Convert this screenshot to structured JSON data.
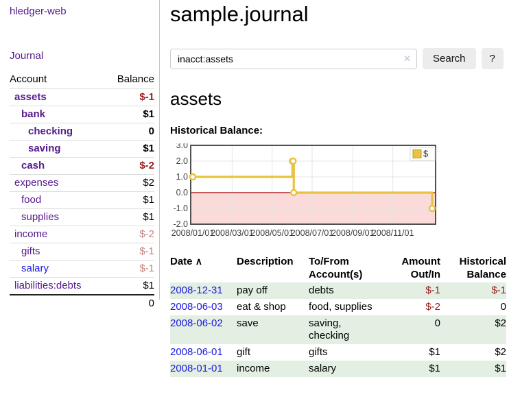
{
  "colors": {
    "link_visited_purple": "#551a8b",
    "link_blue": "#1b1ae0",
    "negative_red": "#9b1c1c",
    "negative_faded_red": "#c4807f",
    "row_green": "#e3efe3",
    "chart_gold": "#e9c23f",
    "chart_negative_fill": "#fbdada",
    "chart_zero_line": "#a40000"
  },
  "sidebar": {
    "app_title": "hledger-web",
    "nav": {
      "journal_label": "Journal"
    },
    "accounts_table": {
      "headers": {
        "account": "Account",
        "balance": "Balance"
      },
      "rows": [
        {
          "name": "assets",
          "balance": "$-1"
        },
        {
          "name": "bank",
          "balance": "$1"
        },
        {
          "name": "checking",
          "balance": "0"
        },
        {
          "name": "saving",
          "balance": "$1"
        },
        {
          "name": "cash",
          "balance": "$-2"
        },
        {
          "name": "expenses",
          "balance": "$2"
        },
        {
          "name": "food",
          "balance": "$1"
        },
        {
          "name": "supplies",
          "balance": "$1"
        },
        {
          "name": "income",
          "balance": "$-2"
        },
        {
          "name": "gifts",
          "balance": "$-1"
        },
        {
          "name": "salary",
          "balance": "$-1"
        },
        {
          "name": "liabilities:debts",
          "balance": "$1"
        }
      ],
      "total": "0"
    }
  },
  "main": {
    "page_title": "sample.journal",
    "search": {
      "value": "inacct:assets",
      "clear_icon": "✕",
      "search_button_label": "Search",
      "help_button_label": "?"
    },
    "section_title": "assets",
    "chart_label": "Historical Balance:"
  },
  "chart_data": {
    "type": "line",
    "style": "step",
    "title": "Historical Balance:",
    "series": [
      {
        "name": "$",
        "points": [
          [
            "2008-01-01",
            1
          ],
          [
            "2008-06-01",
            2
          ],
          [
            "2008-06-02",
            2
          ],
          [
            "2008-06-03",
            0
          ],
          [
            "2008-12-31",
            -1
          ]
        ]
      }
    ],
    "ylim": [
      -2,
      3
    ],
    "ytick_labels": [
      "3.0",
      "2.0",
      "1.0",
      "0.0",
      "-1.0",
      "-2.0"
    ],
    "ytick_values": [
      3,
      2,
      1,
      0,
      -1,
      -2
    ],
    "xtick_labels": [
      "2008/01/01",
      "2008/03/01",
      "2008/05/01",
      "2008/07/01",
      "2008/09/01",
      "2008/11/01"
    ],
    "xtick_dates": [
      "2008-01-01",
      "2008-03-01",
      "2008-05-01",
      "2008-07-01",
      "2008-09-01",
      "2008-11-01"
    ],
    "grid": true,
    "negative_region_shaded": true,
    "legend": {
      "position": "top-right",
      "entries": [
        {
          "label": "$",
          "color": "#e9c23f"
        }
      ]
    }
  },
  "register_table": {
    "sort_caret": "∧",
    "headers": [
      "Date",
      "Description",
      "To/From Account(s)",
      "Amount Out/In",
      "Historical Balance"
    ],
    "rows": [
      {
        "date": "2008-12-31",
        "description": "pay off",
        "accounts": "debts",
        "amount": "$-1",
        "balance": "$-1"
      },
      {
        "date": "2008-06-03",
        "description": "eat & shop",
        "accounts": "food, supplies",
        "amount": "$-2",
        "balance": "0"
      },
      {
        "date": "2008-06-02",
        "description": "save",
        "accounts": "saving, checking",
        "amount": "0",
        "balance": "$2"
      },
      {
        "date": "2008-06-01",
        "description": "gift",
        "accounts": "gifts",
        "amount": "$1",
        "balance": "$2"
      },
      {
        "date": "2008-01-01",
        "description": "income",
        "accounts": "salary",
        "amount": "$1",
        "balance": "$1"
      }
    ]
  }
}
